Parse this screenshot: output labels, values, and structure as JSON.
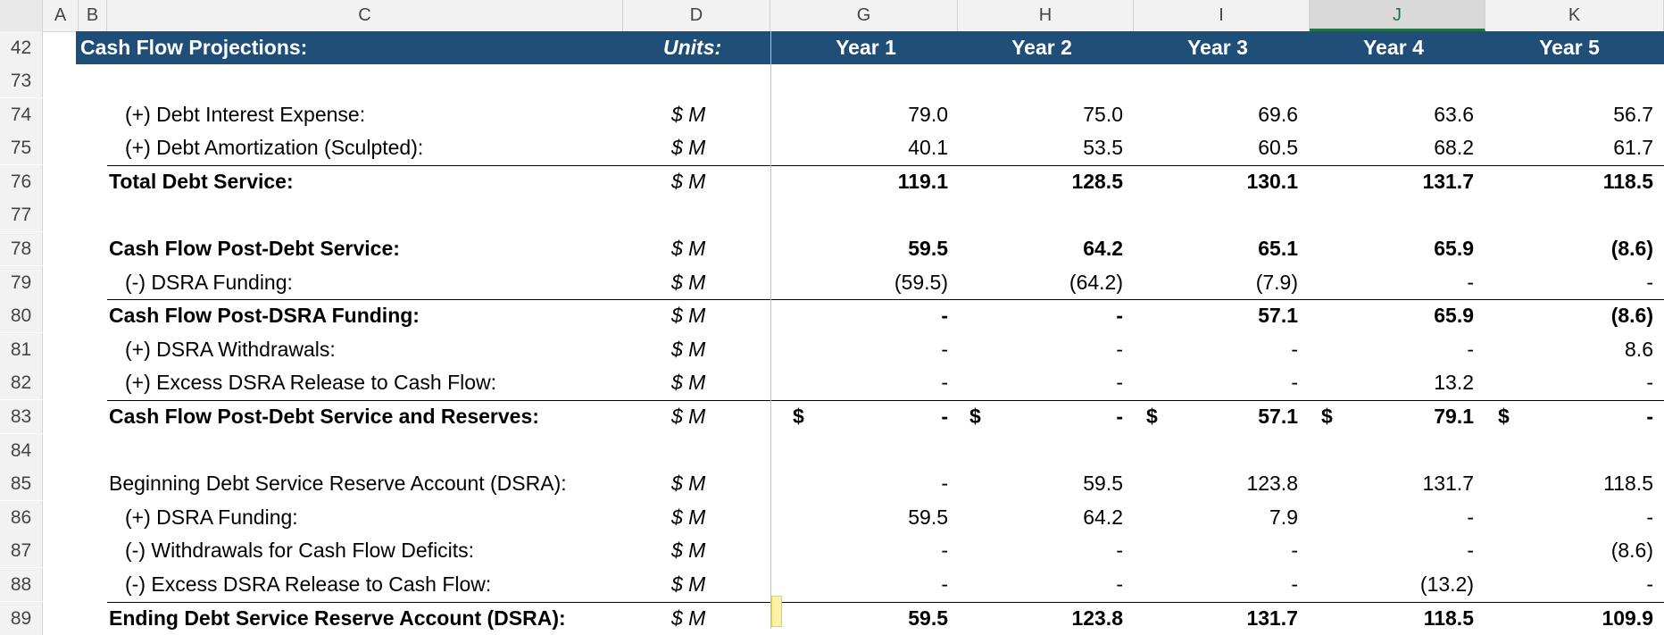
{
  "columns": [
    "A",
    "B",
    "C",
    "D",
    "G",
    "H",
    "I",
    "J",
    "K"
  ],
  "header_row": {
    "row_number": "42",
    "title": "Cash Flow Projections:",
    "units": "Units:",
    "years": [
      "Year 1",
      "Year 2",
      "Year 3",
      "Year 4",
      "Year 5"
    ]
  },
  "rows": [
    {
      "n": "73",
      "label": "",
      "unit": "",
      "values": [
        "",
        "",
        "",
        "",
        ""
      ],
      "bold": false
    },
    {
      "n": "74",
      "label": "(+) Debt Interest Expense:",
      "unit": "$ M",
      "values": [
        "79.0",
        "75.0",
        "69.6",
        "63.6",
        "56.7"
      ],
      "bold": false
    },
    {
      "n": "75",
      "label": "(+) Debt Amortization (Sculpted):",
      "unit": "$ M",
      "values": [
        "40.1",
        "53.5",
        "60.5",
        "68.2",
        "61.7"
      ],
      "bold": false
    },
    {
      "n": "76",
      "label": "Total Debt Service:",
      "unit": "$ M",
      "values": [
        "119.1",
        "128.5",
        "130.1",
        "131.7",
        "118.5"
      ],
      "bold": true
    },
    {
      "n": "77",
      "label": "",
      "unit": "",
      "values": [
        "",
        "",
        "",
        "",
        ""
      ],
      "bold": false
    },
    {
      "n": "78",
      "label": "Cash Flow Post-Debt Service:",
      "unit": "$ M",
      "values": [
        "59.5",
        "64.2",
        "65.1",
        "65.9",
        "(8.6)"
      ],
      "bold": true
    },
    {
      "n": "79",
      "label": "(-) DSRA Funding:",
      "unit": "$ M",
      "values": [
        "(59.5)",
        "(64.2)",
        "(7.9)",
        "-",
        "-"
      ],
      "bold": false
    },
    {
      "n": "80",
      "label": "Cash Flow Post-DSRA Funding:",
      "unit": "$ M",
      "values": [
        "-",
        "-",
        "57.1",
        "65.9",
        "(8.6)"
      ],
      "bold": true
    },
    {
      "n": "81",
      "label": "(+) DSRA Withdrawals:",
      "unit": "$ M",
      "values": [
        "-",
        "-",
        "-",
        "-",
        "8.6"
      ],
      "bold": false
    },
    {
      "n": "82",
      "label": "(+) Excess DSRA Release to Cash Flow:",
      "unit": "$ M",
      "values": [
        "-",
        "-",
        "-",
        "13.2",
        "-"
      ],
      "bold": false
    },
    {
      "n": "83",
      "label": "Cash Flow Post-Debt Service and Reserves:",
      "unit": "$ M",
      "values": [
        "-",
        "-",
        "57.1",
        "79.1",
        "-"
      ],
      "bold": true,
      "currency": "$"
    },
    {
      "n": "84",
      "label": "",
      "unit": "",
      "values": [
        "",
        "",
        "",
        "",
        ""
      ],
      "bold": false
    },
    {
      "n": "85",
      "label": "Beginning Debt Service Reserve Account (DSRA):",
      "unit": "$ M",
      "values": [
        "-",
        "59.5",
        "123.8",
        "131.7",
        "118.5"
      ],
      "bold": false
    },
    {
      "n": "86",
      "label": "(+) DSRA Funding:",
      "unit": "$ M",
      "values": [
        "59.5",
        "64.2",
        "7.9",
        "-",
        "-"
      ],
      "bold": false
    },
    {
      "n": "87",
      "label": "(-) Withdrawals for Cash Flow Deficits:",
      "unit": "$ M",
      "values": [
        "-",
        "-",
        "-",
        "-",
        "(8.6)"
      ],
      "bold": false
    },
    {
      "n": "88",
      "label": "(-) Excess DSRA Release to Cash Flow:",
      "unit": "$ M",
      "values": [
        "-",
        "-",
        "-",
        "(13.2)",
        "-"
      ],
      "bold": false
    },
    {
      "n": "89",
      "label": "Ending Debt Service Reserve Account (DSRA):",
      "unit": "$ M",
      "values": [
        "59.5",
        "123.8",
        "131.7",
        "118.5",
        "109.9"
      ],
      "bold": true
    }
  ],
  "colors": {
    "header_bg": "#1f4e79",
    "header_text": "#ffffff",
    "selected_cell": "#fff3a3"
  }
}
